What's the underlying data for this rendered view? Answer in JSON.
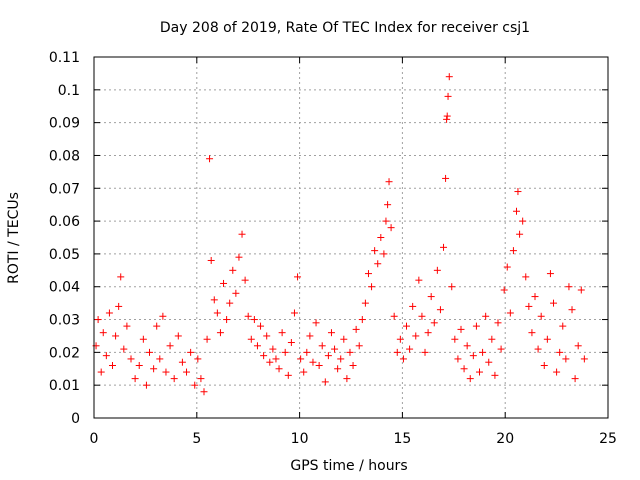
{
  "chart_data": {
    "type": "scatter",
    "title": "Day 208 of 2019, Rate Of TEC Index for receiver csj1",
    "xlabel": "GPS time / hours",
    "ylabel": "ROTI / TECUs",
    "xlim": [
      0,
      25
    ],
    "ylim": [
      0,
      0.11
    ],
    "x_ticks": [
      0,
      5,
      10,
      15,
      20,
      25
    ],
    "y_ticks": [
      0,
      0.01,
      0.02,
      0.03,
      0.04,
      0.05,
      0.06,
      0.07,
      0.08,
      0.09,
      0.1,
      0.11
    ],
    "x_tick_labels": [
      "0",
      "5",
      "10",
      "15",
      "20",
      "25"
    ],
    "y_tick_labels": [
      "0",
      "0.01",
      "0.02",
      "0.03",
      "0.04",
      "0.05",
      "0.06",
      "0.07",
      "0.08",
      "0.09",
      "0.1",
      "0.11"
    ],
    "grid": true,
    "marker": "plus",
    "series": [
      {
        "name": "ROTI",
        "color": "#ff0000",
        "points": [
          [
            0.1,
            0.022
          ],
          [
            0.2,
            0.03
          ],
          [
            0.35,
            0.014
          ],
          [
            0.45,
            0.026
          ],
          [
            0.6,
            0.019
          ],
          [
            0.75,
            0.032
          ],
          [
            0.9,
            0.016
          ],
          [
            1.05,
            0.025
          ],
          [
            1.2,
            0.034
          ],
          [
            1.3,
            0.043
          ],
          [
            1.45,
            0.021
          ],
          [
            1.6,
            0.028
          ],
          [
            1.8,
            0.018
          ],
          [
            2.0,
            0.012
          ],
          [
            2.2,
            0.016
          ],
          [
            2.4,
            0.024
          ],
          [
            2.55,
            0.01
          ],
          [
            2.7,
            0.02
          ],
          [
            2.9,
            0.015
          ],
          [
            3.05,
            0.028
          ],
          [
            3.2,
            0.018
          ],
          [
            3.35,
            0.031
          ],
          [
            3.5,
            0.014
          ],
          [
            3.7,
            0.022
          ],
          [
            3.9,
            0.012
          ],
          [
            4.1,
            0.025
          ],
          [
            4.3,
            0.017
          ],
          [
            4.5,
            0.014
          ],
          [
            4.7,
            0.02
          ],
          [
            4.9,
            0.01
          ],
          [
            5.05,
            0.018
          ],
          [
            5.2,
            0.012
          ],
          [
            5.35,
            0.008
          ],
          [
            5.5,
            0.024
          ],
          [
            5.62,
            0.079
          ],
          [
            5.7,
            0.048
          ],
          [
            5.85,
            0.036
          ],
          [
            6.0,
            0.032
          ],
          [
            6.15,
            0.026
          ],
          [
            6.3,
            0.041
          ],
          [
            6.45,
            0.03
          ],
          [
            6.6,
            0.035
          ],
          [
            6.75,
            0.045
          ],
          [
            6.9,
            0.038
          ],
          [
            7.05,
            0.049
          ],
          [
            7.2,
            0.056
          ],
          [
            7.35,
            0.042
          ],
          [
            7.5,
            0.031
          ],
          [
            7.65,
            0.024
          ],
          [
            7.8,
            0.03
          ],
          [
            7.95,
            0.022
          ],
          [
            8.1,
            0.028
          ],
          [
            8.25,
            0.019
          ],
          [
            8.4,
            0.025
          ],
          [
            8.55,
            0.017
          ],
          [
            8.7,
            0.021
          ],
          [
            8.85,
            0.018
          ],
          [
            9.0,
            0.015
          ],
          [
            9.15,
            0.026
          ],
          [
            9.3,
            0.02
          ],
          [
            9.45,
            0.013
          ],
          [
            9.6,
            0.023
          ],
          [
            9.75,
            0.032
          ],
          [
            9.9,
            0.043
          ],
          [
            10.05,
            0.018
          ],
          [
            10.2,
            0.014
          ],
          [
            10.35,
            0.02
          ],
          [
            10.5,
            0.025
          ],
          [
            10.65,
            0.017
          ],
          [
            10.8,
            0.029
          ],
          [
            10.95,
            0.016
          ],
          [
            11.1,
            0.022
          ],
          [
            11.25,
            0.011
          ],
          [
            11.4,
            0.019
          ],
          [
            11.55,
            0.026
          ],
          [
            11.7,
            0.021
          ],
          [
            11.85,
            0.015
          ],
          [
            12.0,
            0.018
          ],
          [
            12.15,
            0.024
          ],
          [
            12.3,
            0.012
          ],
          [
            12.45,
            0.02
          ],
          [
            12.6,
            0.016
          ],
          [
            12.75,
            0.027
          ],
          [
            12.9,
            0.022
          ],
          [
            13.05,
            0.03
          ],
          [
            13.2,
            0.035
          ],
          [
            13.35,
            0.044
          ],
          [
            13.5,
            0.04
          ],
          [
            13.65,
            0.051
          ],
          [
            13.8,
            0.047
          ],
          [
            13.95,
            0.055
          ],
          [
            14.1,
            0.05
          ],
          [
            14.2,
            0.06
          ],
          [
            14.28,
            0.065
          ],
          [
            14.35,
            0.072
          ],
          [
            14.45,
            0.058
          ],
          [
            14.6,
            0.031
          ],
          [
            14.75,
            0.02
          ],
          [
            14.9,
            0.024
          ],
          [
            15.05,
            0.018
          ],
          [
            15.2,
            0.028
          ],
          [
            15.35,
            0.021
          ],
          [
            15.5,
            0.034
          ],
          [
            15.65,
            0.025
          ],
          [
            15.8,
            0.042
          ],
          [
            15.95,
            0.031
          ],
          [
            16.1,
            0.02
          ],
          [
            16.25,
            0.026
          ],
          [
            16.4,
            0.037
          ],
          [
            16.55,
            0.029
          ],
          [
            16.7,
            0.045
          ],
          [
            16.85,
            0.033
          ],
          [
            17.0,
            0.052
          ],
          [
            17.1,
            0.073
          ],
          [
            17.15,
            0.091
          ],
          [
            17.18,
            0.092
          ],
          [
            17.22,
            0.098
          ],
          [
            17.28,
            0.104
          ],
          [
            17.4,
            0.04
          ],
          [
            17.55,
            0.024
          ],
          [
            17.7,
            0.018
          ],
          [
            17.85,
            0.027
          ],
          [
            18.0,
            0.015
          ],
          [
            18.15,
            0.022
          ],
          [
            18.3,
            0.012
          ],
          [
            18.45,
            0.019
          ],
          [
            18.6,
            0.028
          ],
          [
            18.75,
            0.014
          ],
          [
            18.9,
            0.02
          ],
          [
            19.05,
            0.031
          ],
          [
            19.2,
            0.017
          ],
          [
            19.35,
            0.024
          ],
          [
            19.5,
            0.013
          ],
          [
            19.65,
            0.029
          ],
          [
            19.8,
            0.021
          ],
          [
            19.95,
            0.039
          ],
          [
            20.1,
            0.046
          ],
          [
            20.25,
            0.032
          ],
          [
            20.4,
            0.051
          ],
          [
            20.55,
            0.063
          ],
          [
            20.62,
            0.069
          ],
          [
            20.7,
            0.056
          ],
          [
            20.85,
            0.06
          ],
          [
            21.0,
            0.043
          ],
          [
            21.15,
            0.034
          ],
          [
            21.3,
            0.026
          ],
          [
            21.45,
            0.037
          ],
          [
            21.6,
            0.021
          ],
          [
            21.75,
            0.031
          ],
          [
            21.9,
            0.016
          ],
          [
            22.05,
            0.024
          ],
          [
            22.2,
            0.044
          ],
          [
            22.35,
            0.035
          ],
          [
            22.5,
            0.014
          ],
          [
            22.65,
            0.02
          ],
          [
            22.8,
            0.028
          ],
          [
            22.95,
            0.018
          ],
          [
            23.1,
            0.04
          ],
          [
            23.25,
            0.033
          ],
          [
            23.4,
            0.012
          ],
          [
            23.55,
            0.022
          ],
          [
            23.7,
            0.039
          ],
          [
            23.85,
            0.018
          ]
        ]
      }
    ]
  }
}
